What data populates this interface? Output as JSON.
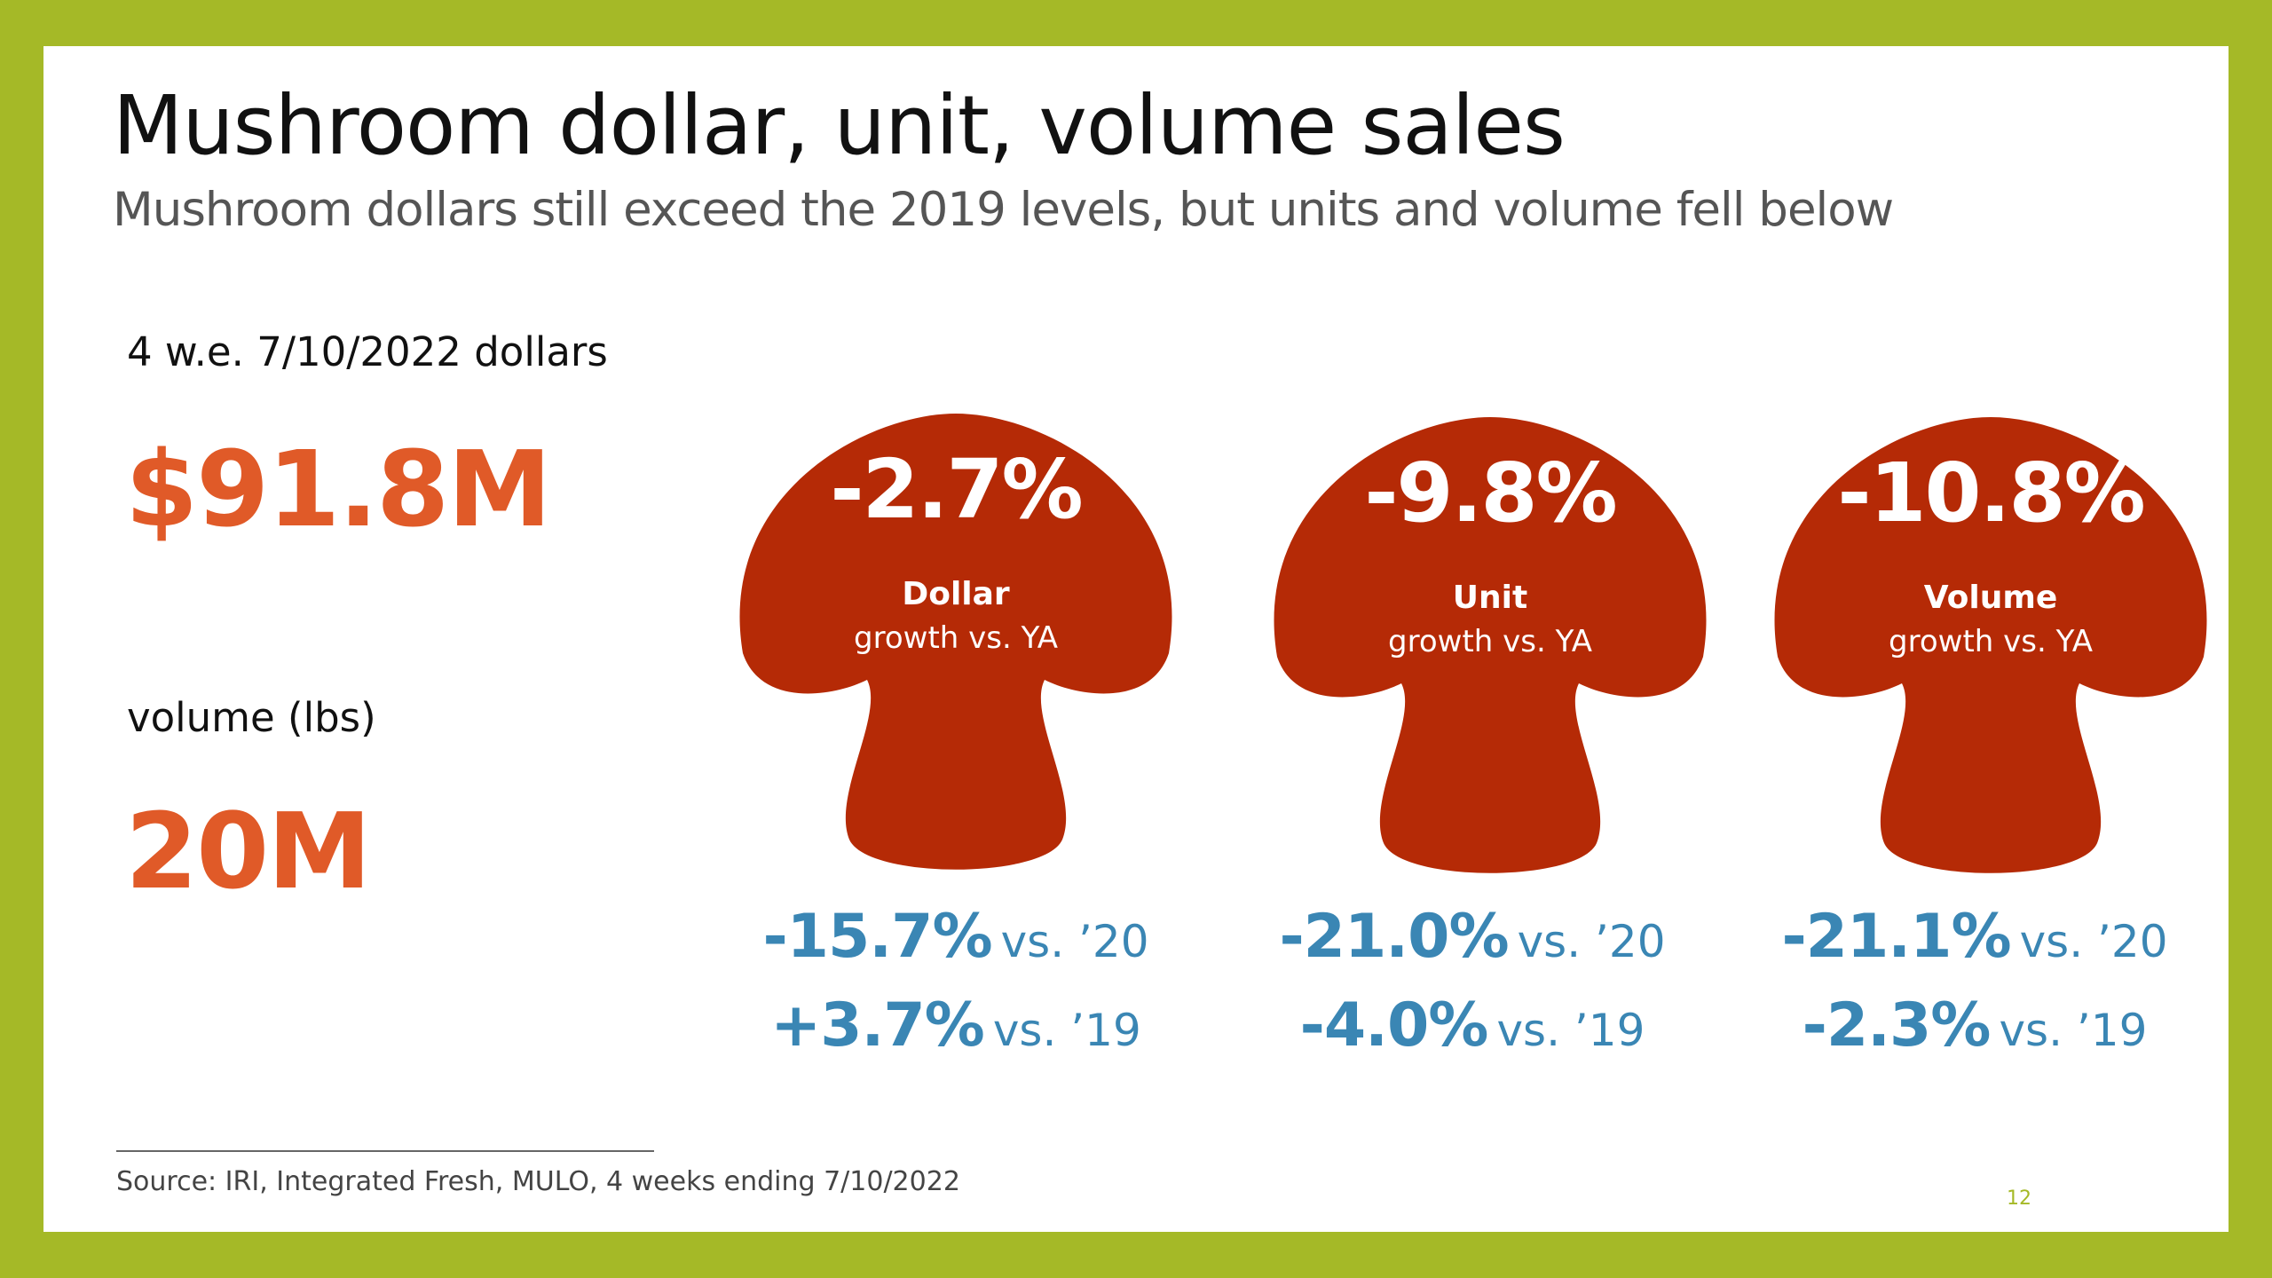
{
  "slide": {
    "title": "Mushroom dollar, unit, volume sales",
    "subtitle": "Mushroom dollars still exceed the 2019 levels, but units and volume fell below",
    "background_color": "#a5b927",
    "accent_color": "#e05a28",
    "mushroom_color": "#b52a06",
    "comparison_color": "#3a86b4"
  },
  "dollars": {
    "label": "4 w.e. 7/10/2022 dollars",
    "value": "$91.8M"
  },
  "volume": {
    "label": "volume (lbs)",
    "value": "20M"
  },
  "mushrooms": [
    {
      "pct": "-2.7%",
      "label": "Dollar",
      "sub": "growth vs. YA",
      "vs20": "-15.7%",
      "vs20_label": "vs. ’20",
      "vs19": "+3.7%",
      "vs19_label": "vs. ’19"
    },
    {
      "pct": "-9.8%",
      "label": "Unit",
      "sub": "growth vs. YA",
      "vs20": "-21.0%",
      "vs20_label": "vs. ’20",
      "vs19": "-4.0%",
      "vs19_label": "vs. ’19"
    },
    {
      "pct": "-10.8%",
      "label": "Volume",
      "sub": "growth vs. YA",
      "vs20": "-21.1%",
      "vs20_label": "vs. ’20",
      "vs19": "-2.3%",
      "vs19_label": "vs. ’19"
    }
  ],
  "footer": {
    "source": "Source: IRI, Integrated Fresh, MULO, 4 weeks ending 7/10/2022",
    "page_number": "12"
  }
}
